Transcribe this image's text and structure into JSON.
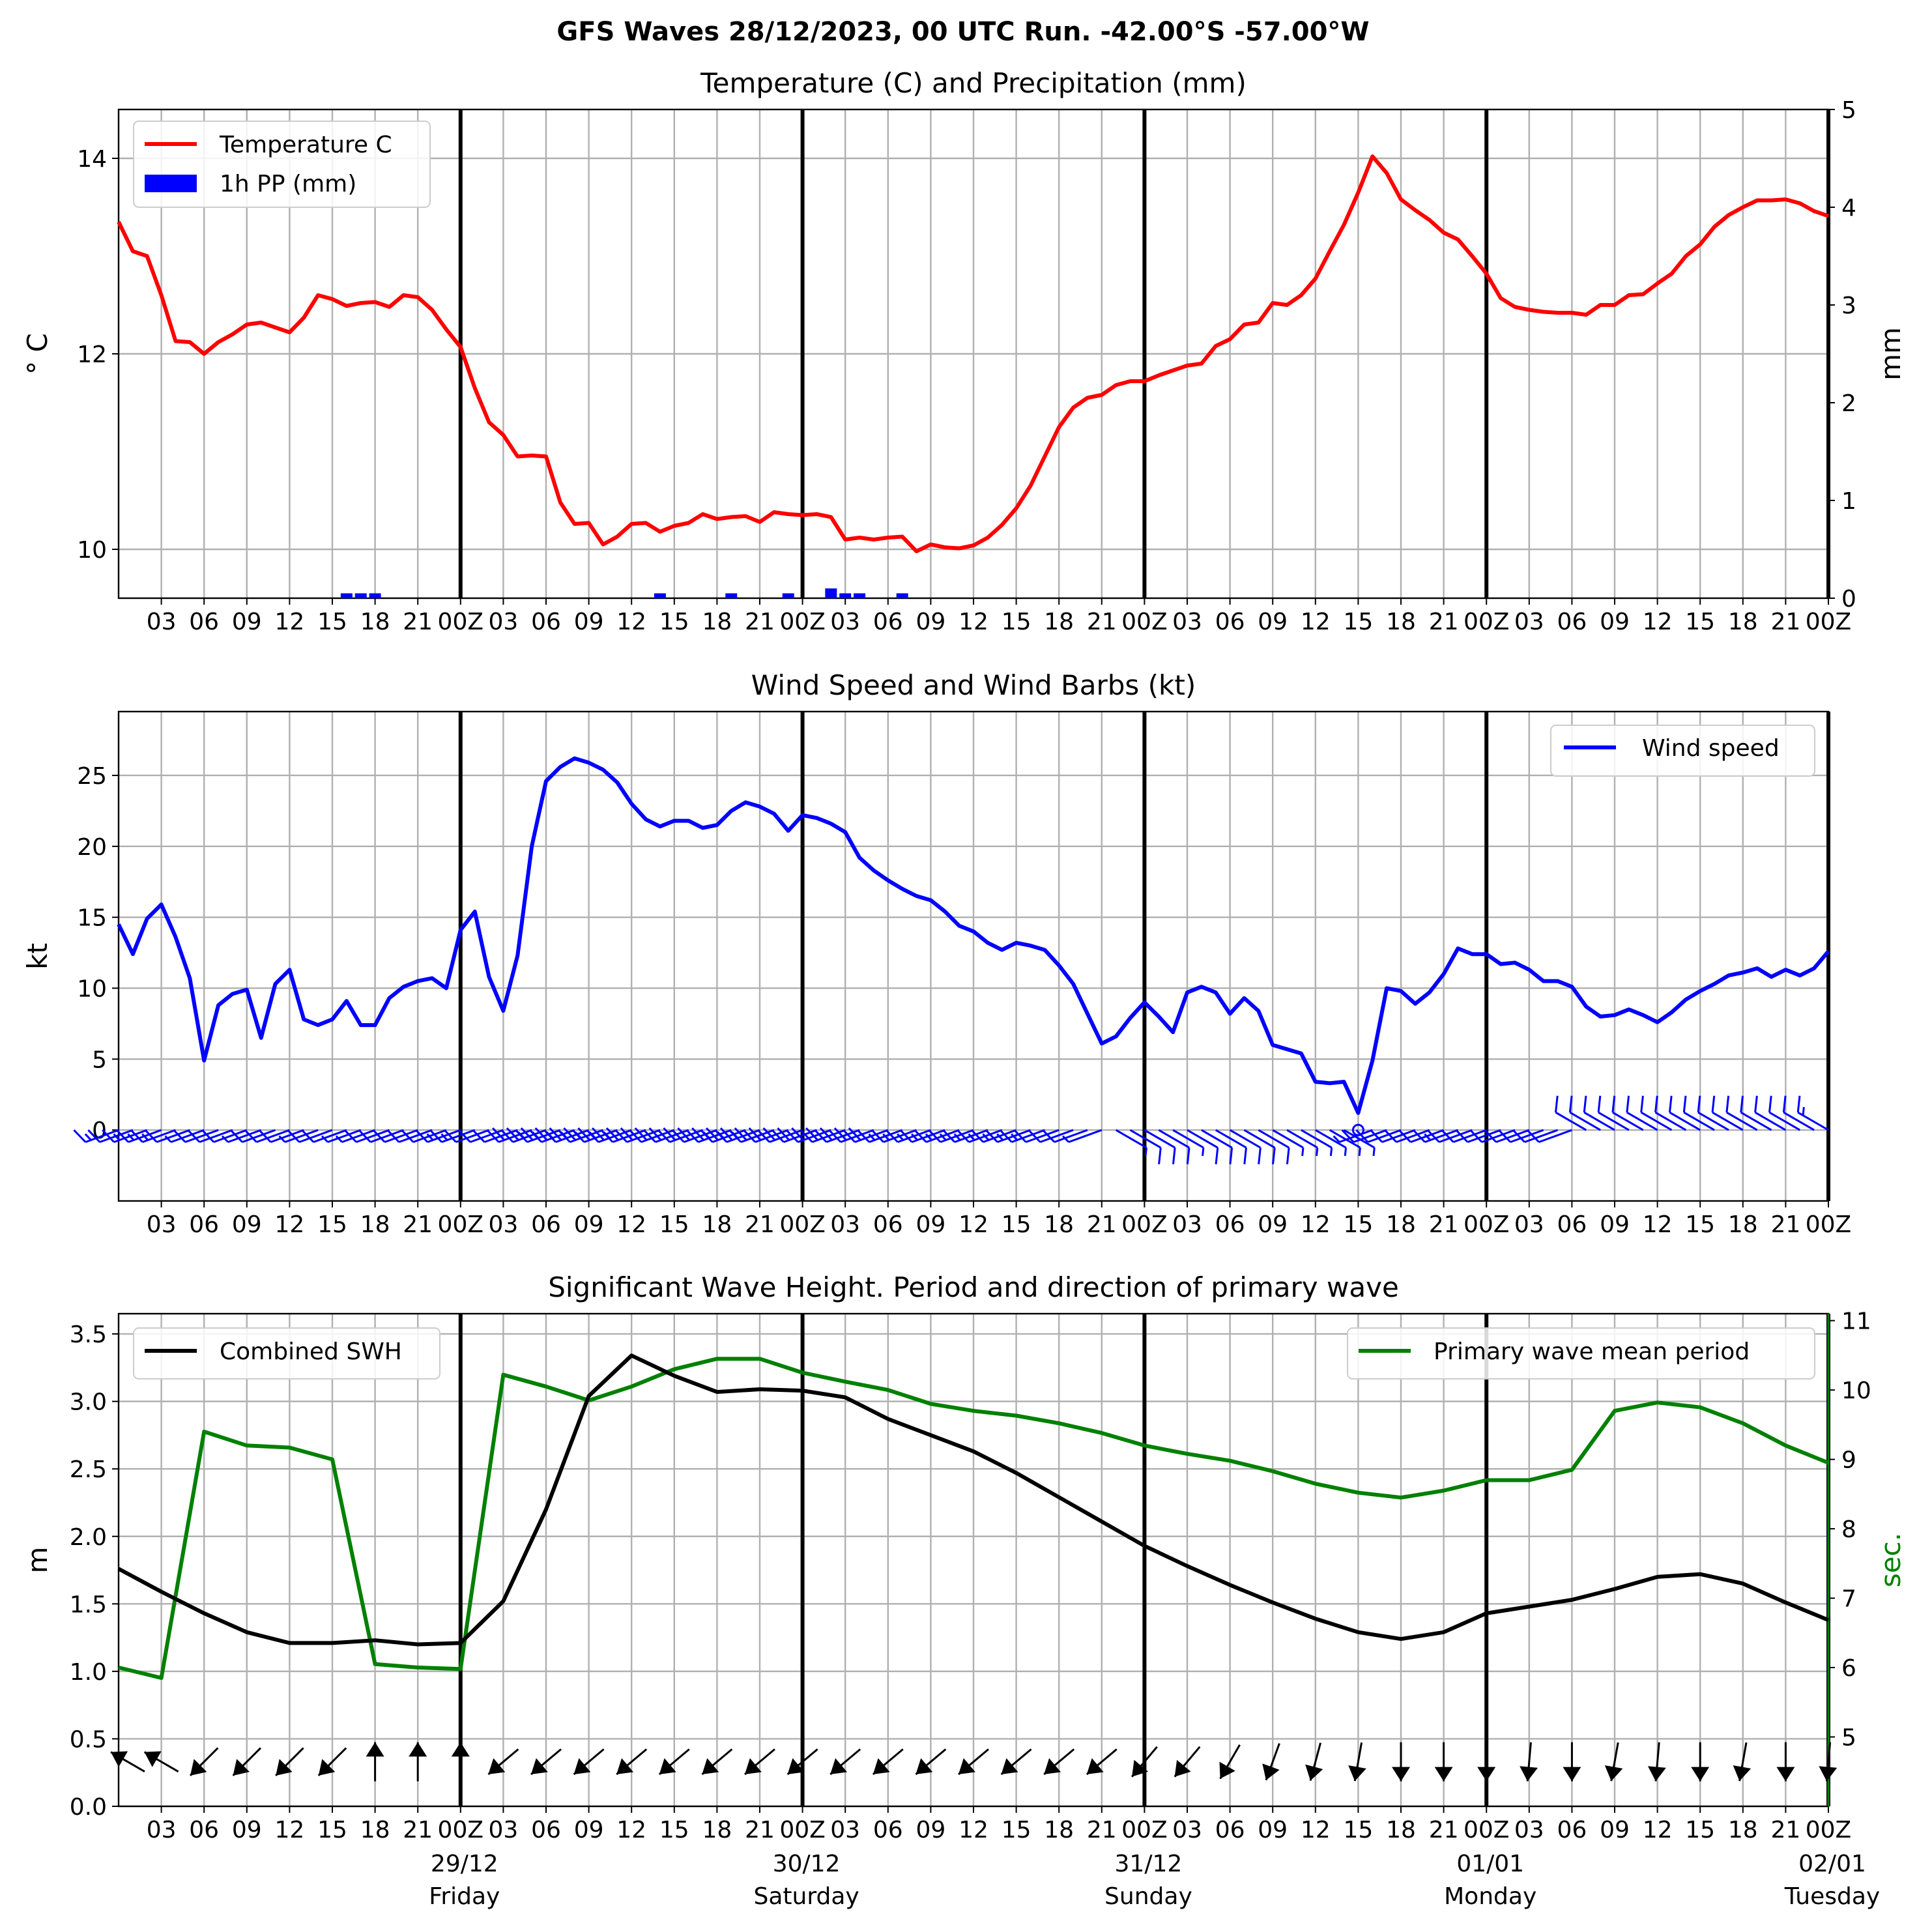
{
  "figure": {
    "title": "GFS Waves 28/12/2023, 00 UTC Run. -42.00°S -57.00°W"
  },
  "time_axis": {
    "hour_labels": [
      "03",
      "06",
      "09",
      "12",
      "15",
      "18",
      "21",
      "00Z",
      "03",
      "06",
      "09",
      "12",
      "15",
      "18",
      "21",
      "00Z",
      "03",
      "06",
      "09",
      "12",
      "15",
      "18",
      "21",
      "00Z",
      "03",
      "06",
      "09",
      "12",
      "15",
      "18",
      "21",
      "00Z",
      "03",
      "06",
      "09",
      "12",
      "15",
      "18",
      "21",
      "00Z"
    ],
    "date_labels": [
      "29/12",
      "30/12",
      "31/12",
      "01/01",
      "02/01"
    ],
    "day_labels": [
      "Friday",
      "Saturday",
      "Sunday",
      "Monday",
      "Tuesday"
    ]
  },
  "colors": {
    "temperature": "#ff0000",
    "precipitation": "#0000ff",
    "wind": "#0000ff",
    "swh": "#000000",
    "period": "#008000",
    "grid": "#b0b0b0"
  },
  "chart_data": [
    {
      "type": "line",
      "title": "Temperature (C) and Precipitation (mm)",
      "ylabel": "° C",
      "ylabel_right": "mm",
      "y_ticks": [
        "10",
        "12",
        "14"
      ],
      "y_right_ticks": [
        "0",
        "1",
        "2",
        "3",
        "4",
        "5"
      ],
      "ylim": [
        9.5,
        14.5
      ],
      "ylim_right": [
        0,
        5
      ],
      "xlim_hours": [
        0,
        120
      ],
      "grid": true,
      "legend": "top-left",
      "series": [
        {
          "name": "Temperature C",
          "x_hours": [
            0,
            1,
            2,
            3,
            4,
            5,
            6,
            7,
            8,
            9,
            10,
            11,
            12,
            13,
            14,
            15,
            16,
            17,
            18,
            19,
            20,
            21,
            22,
            23,
            24,
            25,
            26,
            27,
            28,
            29,
            30,
            31,
            32,
            33,
            34,
            35,
            36,
            37,
            38,
            39,
            40,
            41,
            42,
            43,
            44,
            45,
            46,
            47,
            48,
            49,
            50,
            51,
            52,
            53,
            54,
            55,
            56,
            57,
            58,
            59,
            60,
            61,
            62,
            63,
            64,
            65,
            66,
            67,
            68,
            69,
            70,
            71,
            72,
            73,
            74,
            75,
            76,
            77,
            78,
            79,
            80,
            81,
            82,
            83,
            84,
            85,
            86,
            87,
            88,
            89,
            90,
            91,
            92,
            93,
            94,
            95,
            96,
            97,
            98,
            99,
            100,
            101,
            102,
            103,
            104,
            105,
            106,
            107,
            108,
            109,
            110,
            111,
            112,
            113,
            114,
            115,
            116,
            117,
            118,
            119,
            120
          ],
          "values": [
            13.35,
            13.05,
            13.0,
            12.6,
            12.13,
            12.12,
            12.0,
            12.12,
            12.2,
            12.3,
            12.32,
            12.27,
            12.22,
            12.37,
            12.6,
            12.56,
            12.49,
            12.52,
            12.53,
            12.48,
            12.6,
            12.58,
            12.45,
            12.25,
            12.07,
            11.65,
            11.3,
            11.17,
            10.95,
            10.96,
            10.95,
            10.48,
            10.26,
            10.27,
            10.05,
            10.13,
            10.26,
            10.27,
            10.18,
            10.24,
            10.27,
            10.36,
            10.31,
            10.33,
            10.34,
            10.28,
            10.38,
            10.36,
            10.35,
            10.36,
            10.33,
            10.1,
            10.12,
            10.1,
            10.12,
            10.13,
            9.98,
            10.05,
            10.02,
            10.01,
            10.04,
            10.12,
            10.25,
            10.42,
            10.65,
            10.95,
            11.25,
            11.45,
            11.55,
            11.58,
            11.68,
            11.72,
            11.72,
            11.78,
            11.83,
            11.88,
            11.9,
            12.08,
            12.15,
            12.3,
            12.32,
            12.52,
            12.5,
            12.6,
            12.77,
            13.05,
            13.32,
            13.65,
            14.02,
            13.85,
            13.58,
            13.47,
            13.37,
            13.24,
            13.17,
            13.0,
            12.82,
            12.57,
            12.48,
            12.45,
            12.43,
            12.42,
            12.42,
            12.4,
            12.5,
            12.5,
            12.6,
            12.61,
            12.72,
            12.82,
            13.0,
            13.12,
            13.3,
            13.42,
            13.5,
            13.57,
            13.57,
            13.58,
            13.54,
            13.46,
            13.41
          ]
        },
        {
          "name": "1h PP (mm)",
          "type": "bar",
          "x_hours": [
            16,
            17,
            18,
            38,
            43,
            47,
            50,
            51,
            52,
            55
          ],
          "values": [
            0.05,
            0.05,
            0.05,
            0.05,
            0.05,
            0.05,
            0.1,
            0.05,
            0.05,
            0.05
          ]
        }
      ]
    },
    {
      "type": "line",
      "title": "Wind Speed and Wind Barbs (kt)",
      "ylabel": "kt",
      "y_ticks": [
        "0",
        "5",
        "10",
        "15",
        "20",
        "25"
      ],
      "ylim": [
        -5,
        29.5
      ],
      "xlim_hours": [
        0,
        120
      ],
      "grid": true,
      "legend": "top-right",
      "series": [
        {
          "name": "Wind speed",
          "x_hours": [
            0,
            1,
            2,
            3,
            4,
            5,
            6,
            7,
            8,
            9,
            10,
            11,
            12,
            13,
            14,
            15,
            16,
            17,
            18,
            19,
            20,
            21,
            22,
            23,
            24,
            25,
            26,
            27,
            28,
            29,
            30,
            31,
            32,
            33,
            34,
            35,
            36,
            37,
            38,
            39,
            40,
            41,
            42,
            43,
            44,
            45,
            46,
            47,
            48,
            49,
            50,
            51,
            52,
            53,
            54,
            55,
            56,
            57,
            58,
            59,
            60,
            61,
            62,
            63,
            64,
            65,
            66,
            67,
            68,
            69,
            70,
            71,
            72,
            73,
            74,
            75,
            76,
            77,
            78,
            79,
            80,
            81,
            82,
            83,
            84,
            85,
            86,
            87,
            88,
            89,
            90,
            91,
            92,
            93,
            94,
            95,
            96,
            97,
            98,
            99,
            100,
            101,
            102,
            103,
            104,
            105,
            106,
            107,
            108,
            109,
            110,
            111,
            112,
            113,
            114,
            115,
            116,
            117,
            118,
            119,
            120
          ],
          "values": [
            14.5,
            12.4,
            14.9,
            15.9,
            13.6,
            10.7,
            4.9,
            8.8,
            9.6,
            9.9,
            6.5,
            10.3,
            11.3,
            7.8,
            7.4,
            7.8,
            9.1,
            7.4,
            7.4,
            9.3,
            10.1,
            10.5,
            10.7,
            10.0,
            14.1,
            15.4,
            10.8,
            8.4,
            12.3,
            20.0,
            24.6,
            25.6,
            26.2,
            25.9,
            25.4,
            24.5,
            23.0,
            21.9,
            21.4,
            21.8,
            21.8,
            21.3,
            21.5,
            22.5,
            23.1,
            22.8,
            22.3,
            21.1,
            22.2,
            22.0,
            21.6,
            21.0,
            19.2,
            18.3,
            17.6,
            17.0,
            16.5,
            16.2,
            15.4,
            14.4,
            14.0,
            13.2,
            12.7,
            13.2,
            13.0,
            12.7,
            11.6,
            10.3,
            8.2,
            6.1,
            6.6,
            7.9,
            9.0,
            8.0,
            6.9,
            9.7,
            10.1,
            9.7,
            8.2,
            9.3,
            8.4,
            6.0,
            5.7,
            5.4,
            3.4,
            3.3,
            3.4,
            1.2,
            4.9,
            10.0,
            9.8,
            8.9,
            9.7,
            11.0,
            12.8,
            12.4,
            12.4,
            11.7,
            11.8,
            11.3,
            10.5,
            10.5,
            10.1,
            8.7,
            8.0,
            8.1,
            8.5,
            8.1,
            7.6,
            8.3,
            9.2,
            9.8,
            10.3,
            10.9,
            11.1,
            11.4,
            10.8,
            11.3,
            10.9,
            11.4,
            12.6
          ]
        }
      ],
      "wind_barbs": {
        "x_hours": [
          0,
          1,
          2,
          3,
          4,
          5,
          6,
          7,
          8,
          9,
          10,
          11,
          12,
          13,
          14,
          15,
          16,
          17,
          18,
          19,
          20,
          21,
          22,
          23,
          24,
          25,
          26,
          27,
          28,
          29,
          30,
          31,
          32,
          33,
          34,
          35,
          36,
          37,
          38,
          39,
          40,
          41,
          42,
          43,
          44,
          45,
          46,
          47,
          48,
          49,
          50,
          51,
          52,
          53,
          54,
          55,
          56,
          57,
          58,
          59,
          60,
          61,
          62,
          63,
          64,
          65,
          66,
          67,
          68,
          69,
          70,
          71,
          72,
          73,
          74,
          75,
          76,
          77,
          78,
          79,
          80,
          81,
          82,
          83,
          84,
          85,
          86,
          87,
          88,
          89,
          90,
          91,
          92,
          93,
          94,
          95,
          96,
          97,
          98,
          99,
          100,
          101,
          102,
          103,
          104,
          105,
          106,
          107,
          108,
          109,
          110,
          111,
          112,
          113,
          114,
          115,
          116,
          117,
          118,
          119,
          120
        ],
        "direction_deg": [
          250,
          250,
          250,
          250,
          250,
          250,
          250,
          250,
          250,
          250,
          250,
          250,
          250,
          250,
          250,
          250,
          250,
          250,
          250,
          250,
          250,
          250,
          250,
          250,
          250,
          250,
          250,
          250,
          250,
          250,
          250,
          250,
          250,
          250,
          250,
          250,
          250,
          250,
          250,
          250,
          250,
          250,
          250,
          250,
          250,
          250,
          250,
          250,
          250,
          250,
          250,
          250,
          250,
          250,
          250,
          250,
          250,
          250,
          250,
          250,
          250,
          250,
          250,
          250,
          250,
          250,
          250,
          250,
          250,
          250,
          120,
          120,
          120,
          120,
          120,
          120,
          120,
          120,
          120,
          120,
          120,
          120,
          120,
          120,
          120,
          120,
          120,
          120,
          250,
          250,
          250,
          250,
          250,
          250,
          250,
          250,
          250,
          250,
          250,
          250,
          250,
          250,
          250,
          300,
          300,
          300,
          300,
          300,
          300,
          300,
          300,
          300,
          300,
          300,
          300,
          300,
          300,
          300,
          300,
          300,
          300
        ]
      }
    },
    {
      "type": "line",
      "title": "Significant Wave Height. Period and direction of primary wave",
      "ylabel": "m",
      "ylabel_right": "sec.",
      "y_ticks": [
        "0.0",
        "0.5",
        "1.0",
        "1.5",
        "2.0",
        "2.5",
        "3.0",
        "3.5"
      ],
      "y_right_ticks": [
        "5",
        "6",
        "7",
        "8",
        "9",
        "10",
        "11"
      ],
      "ylim": [
        0,
        3.65
      ],
      "ylim_right": [
        4.0,
        11.1
      ],
      "xlim_hours": [
        0,
        120
      ],
      "grid": true,
      "series": [
        {
          "name": "Combined SWH",
          "legend": "top-left",
          "x_hours": [
            0,
            3,
            6,
            9,
            12,
            15,
            18,
            21,
            24,
            27,
            30,
            33,
            36,
            39,
            42,
            45,
            48,
            51,
            54,
            57,
            60,
            63,
            66,
            69,
            72,
            75,
            78,
            81,
            84,
            87,
            90,
            93,
            96,
            99,
            102,
            105,
            108,
            111,
            114,
            117,
            120
          ],
          "values": [
            1.76,
            1.59,
            1.43,
            1.29,
            1.21,
            1.21,
            1.23,
            1.2,
            1.21,
            1.52,
            2.2,
            3.04,
            3.34,
            3.19,
            3.07,
            3.09,
            3.08,
            3.03,
            2.87,
            2.75,
            2.63,
            2.47,
            2.29,
            2.11,
            1.93,
            1.78,
            1.64,
            1.51,
            1.39,
            1.29,
            1.24,
            1.29,
            1.43,
            1.48,
            1.53,
            1.61,
            1.7,
            1.72,
            1.65,
            1.51,
            1.38
          ]
        },
        {
          "name": "Primary wave mean period",
          "legend": "top-right",
          "x_hours": [
            0,
            3,
            6,
            9,
            12,
            15,
            18,
            21,
            24,
            27,
            30,
            33,
            36,
            39,
            42,
            45,
            48,
            51,
            54,
            57,
            60,
            63,
            66,
            69,
            72,
            75,
            78,
            81,
            84,
            87,
            90,
            93,
            96,
            99,
            102,
            105,
            108,
            111,
            114,
            117,
            120
          ],
          "values": [
            6.0,
            5.85,
            9.4,
            9.2,
            9.17,
            9.0,
            6.05,
            6.0,
            5.98,
            10.22,
            10.05,
            9.85,
            10.05,
            10.3,
            10.45,
            10.45,
            10.25,
            10.12,
            10.0,
            9.8,
            9.7,
            9.63,
            9.52,
            9.38,
            9.2,
            9.08,
            8.98,
            8.83,
            8.65,
            8.52,
            8.45,
            8.55,
            8.7,
            8.7,
            8.85,
            9.7,
            9.82,
            9.75,
            9.52,
            9.2,
            8.95
          ]
        }
      ],
      "wave_direction_deg": [
        300,
        300,
        225,
        225,
        225,
        225,
        0,
        0,
        0,
        230,
        230,
        230,
        230,
        230,
        230,
        230,
        230,
        230,
        230,
        230,
        230,
        230,
        230,
        230,
        220,
        220,
        210,
        200,
        195,
        190,
        180,
        180,
        180,
        185,
        180,
        190,
        185,
        180,
        190,
        180,
        185
      ]
    }
  ]
}
